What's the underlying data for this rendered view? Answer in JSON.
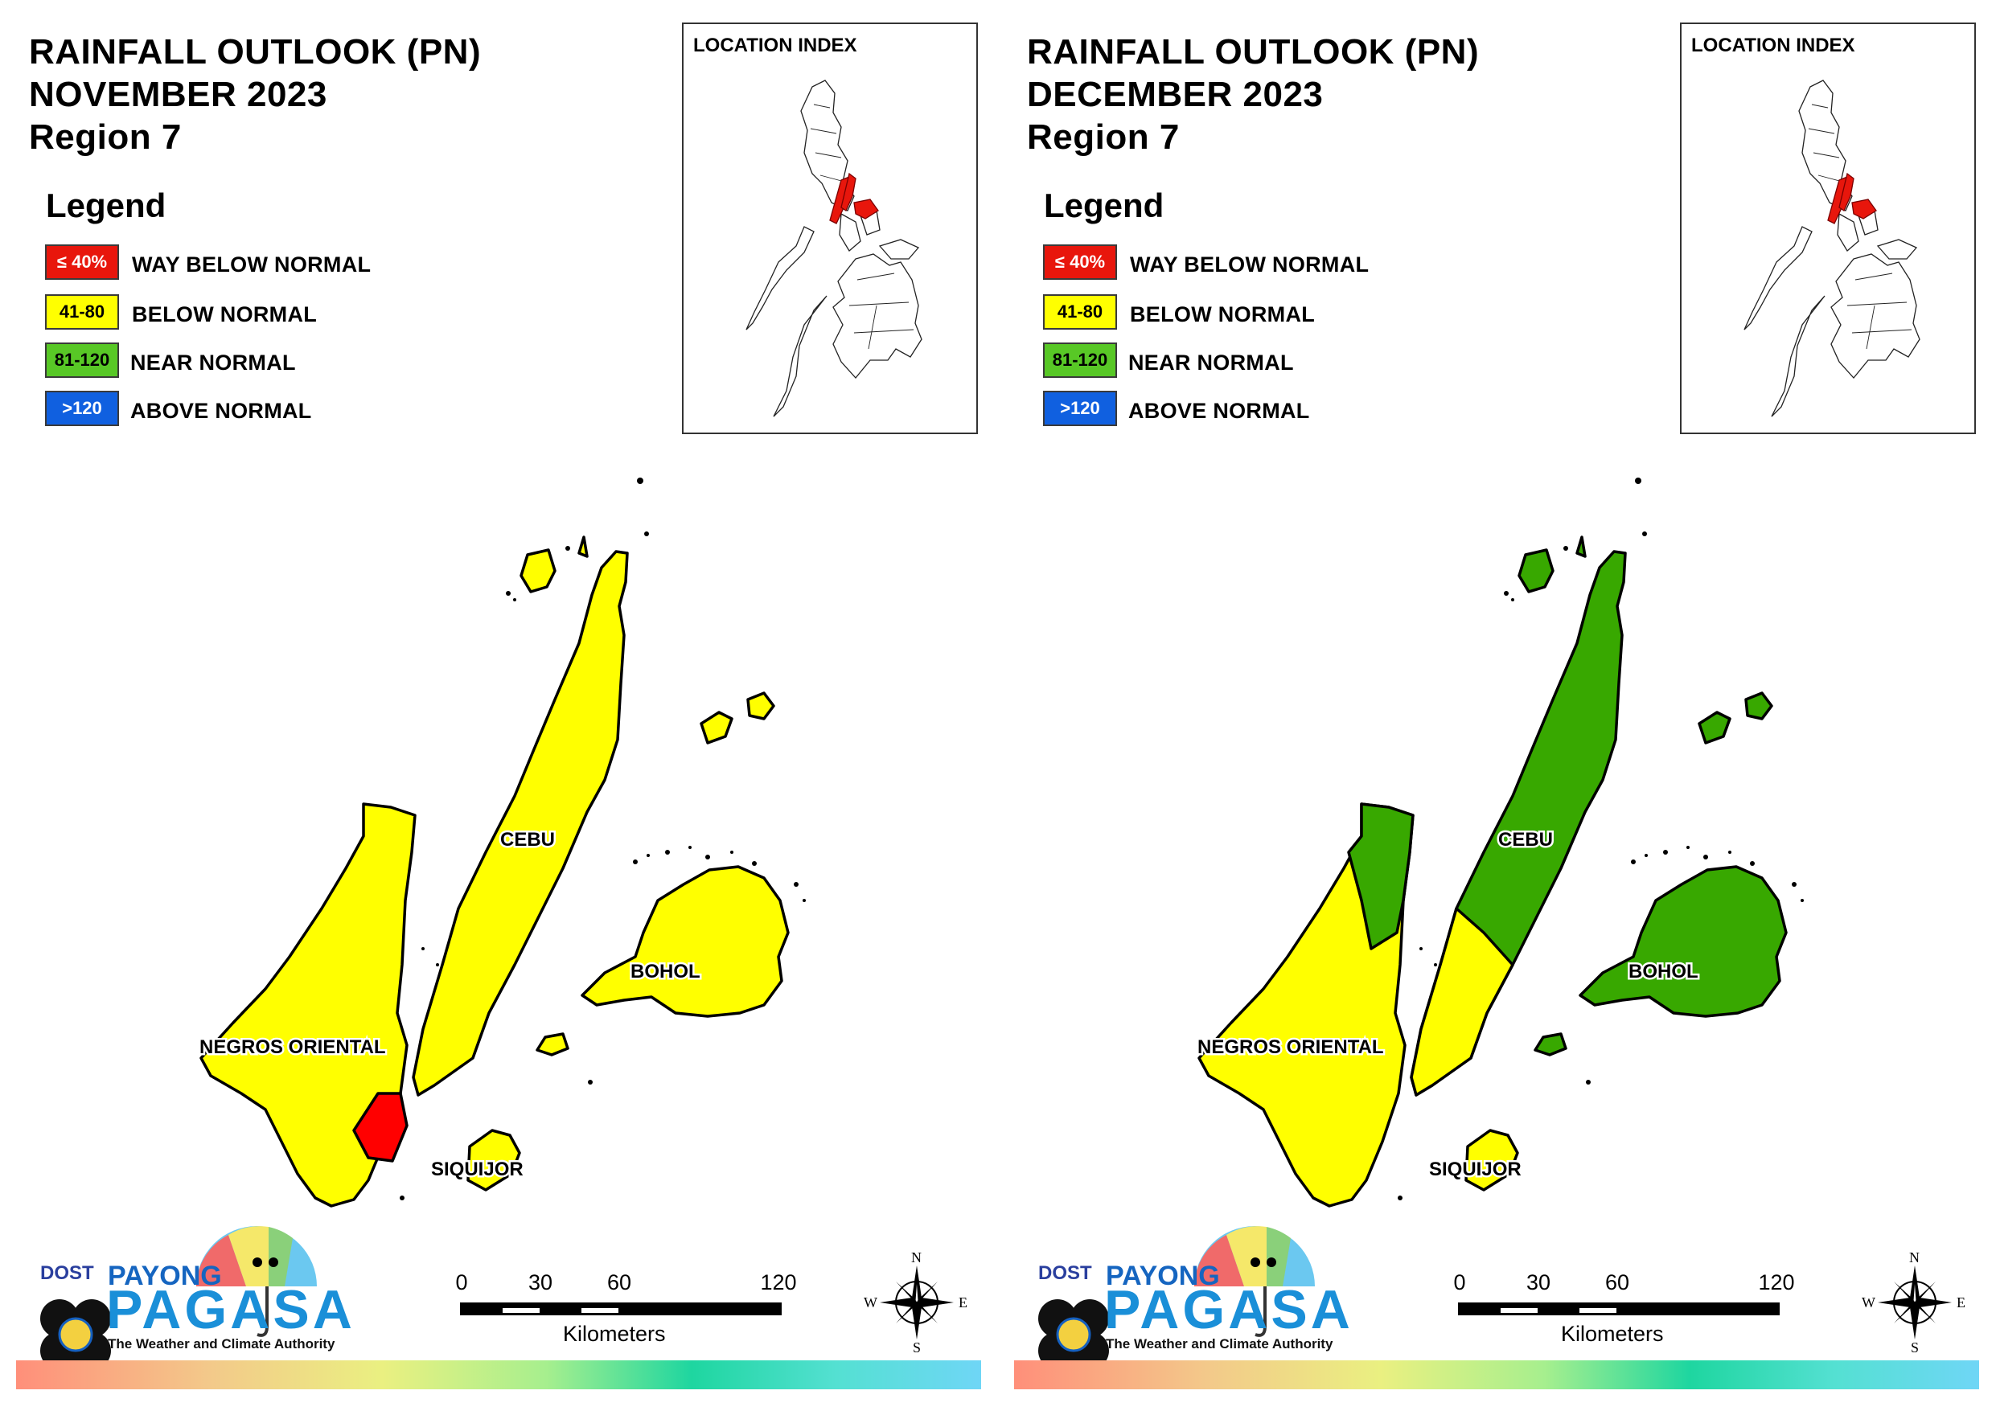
{
  "panels": [
    {
      "title_line1": "RAINFALL OUTLOOK (PN)",
      "title_line2": "NOVEMBER 2023",
      "title_line3": "Region 7",
      "legend_title": "Legend",
      "legend": [
        {
          "code": "≤ 40%",
          "label": "WAY BELOW NORMAL",
          "color": "#e8160c",
          "text_color": "#ffffff"
        },
        {
          "code": "41-80",
          "label": "BELOW NORMAL",
          "color": "#ffff00",
          "text_color": "#000000"
        },
        {
          "code": "81-120",
          "label": "NEAR NORMAL",
          "color": "#58c826",
          "text_color": "#000000"
        },
        {
          "code": ">120",
          "label": "ABOVE NORMAL",
          "color": "#1060e0",
          "text_color": "#ffffff"
        }
      ],
      "location_index_title": "LOCATION INDEX",
      "provinces": {
        "cebu": {
          "label": "CEBU",
          "category": "BELOW NORMAL",
          "color": "#ffff00"
        },
        "bohol": {
          "label": "BOHOL",
          "category": "BELOW NORMAL",
          "color": "#ffff00"
        },
        "negros_oriental": {
          "label": "NEGROS ORIENTAL",
          "category": "BELOW NORMAL",
          "color": "#ffff00",
          "south_east_category": "WAY BELOW NORMAL",
          "south_east_color": "#ff0000"
        },
        "siquijor": {
          "label": "SIQUIJOR",
          "category": "BELOW NORMAL",
          "color": "#ffff00"
        }
      },
      "scale": {
        "ticks": [
          "0",
          "30",
          "60",
          "120"
        ],
        "unit": "Kilometers"
      },
      "compass": {
        "n": "N",
        "e": "E",
        "s": "S",
        "w": "W"
      },
      "logo": {
        "dost": "DOST",
        "payong": "PAYONG",
        "pagasa": "PAGASA",
        "tagline": "The Weather and Climate Authority"
      }
    },
    {
      "title_line1": "RAINFALL OUTLOOK (PN)",
      "title_line2": "DECEMBER 2023",
      "title_line3": "Region 7",
      "legend_title": "Legend",
      "legend": [
        {
          "code": "≤ 40%",
          "label": "WAY BELOW NORMAL",
          "color": "#e8160c",
          "text_color": "#ffffff"
        },
        {
          "code": "41-80",
          "label": "BELOW NORMAL",
          "color": "#ffff00",
          "text_color": "#000000"
        },
        {
          "code": "81-120",
          "label": "NEAR NORMAL",
          "color": "#58c826",
          "text_color": "#000000"
        },
        {
          "code": ">120",
          "label": "ABOVE NORMAL",
          "color": "#1060e0",
          "text_color": "#ffffff"
        }
      ],
      "location_index_title": "LOCATION INDEX",
      "provinces": {
        "cebu": {
          "label": "CEBU",
          "category": "NEAR NORMAL",
          "color": "#38a800",
          "south_tip_category": "BELOW NORMAL",
          "south_tip_color": "#ffff00"
        },
        "bohol": {
          "label": "BOHOL",
          "category": "NEAR NORMAL",
          "color": "#38a800"
        },
        "negros_oriental": {
          "label": "NEGROS ORIENTAL",
          "category": "BELOW NORMAL",
          "color": "#ffff00",
          "north_category": "NEAR NORMAL",
          "north_color": "#38a800"
        },
        "siquijor": {
          "label": "SIQUIJOR",
          "category": "BELOW NORMAL",
          "color": "#ffff00"
        }
      },
      "scale": {
        "ticks": [
          "0",
          "30",
          "60",
          "120"
        ],
        "unit": "Kilometers"
      },
      "compass": {
        "n": "N",
        "e": "E",
        "s": "S",
        "w": "W"
      },
      "logo": {
        "dost": "DOST",
        "payong": "PAYONG",
        "pagasa": "PAGASA",
        "tagline": "The Weather and Climate Authority"
      }
    }
  ]
}
